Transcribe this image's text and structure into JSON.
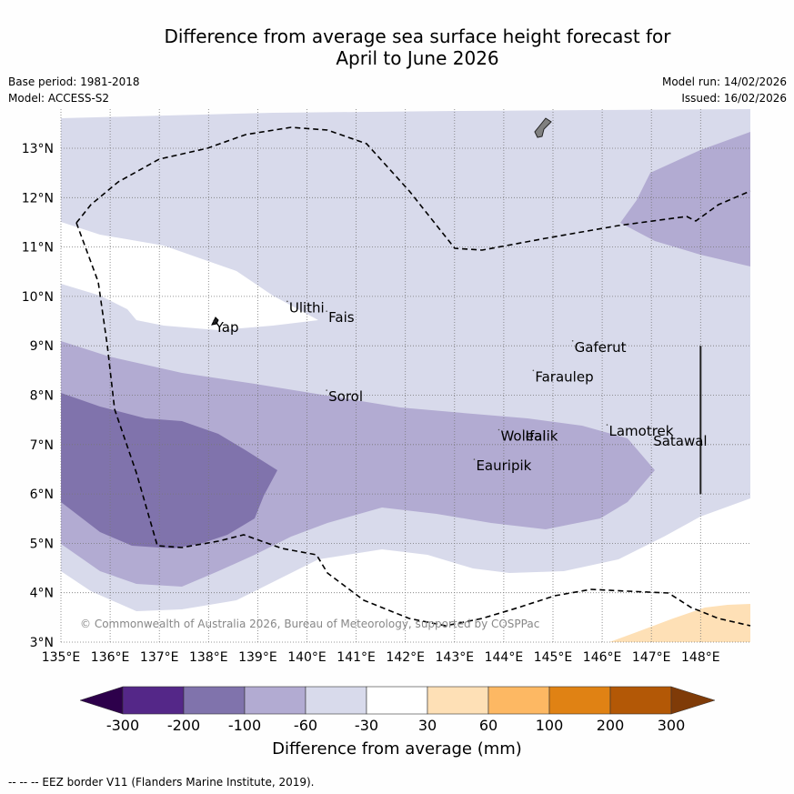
{
  "header": {
    "title_line1": "Difference from average sea surface height forecast for",
    "title_line2": "April to June 2026",
    "base_period": "Base period: 1981-2018",
    "model": "Model: ACCESS-S2",
    "model_run": "Model run: 14/02/2026",
    "issued": "Issued: 16/02/2026"
  },
  "map": {
    "lon_range": [
      135,
      149
    ],
    "lat_range": [
      3,
      13.8
    ],
    "x_ticks": [
      "135°E",
      "136°E",
      "137°E",
      "138°E",
      "139°E",
      "140°E",
      "141°E",
      "142°E",
      "143°E",
      "144°E",
      "145°E",
      "146°E",
      "147°E",
      "148°E"
    ],
    "y_ticks": [
      "3°N",
      "4°N",
      "5°N",
      "6°N",
      "7°N",
      "8°N",
      "9°N",
      "10°N",
      "11°N",
      "12°N",
      "13°N"
    ],
    "places": [
      {
        "name": "Yap",
        "lon": 138.1,
        "lat": 9.5
      },
      {
        "name": "Ulithi",
        "lon": 139.6,
        "lat": 9.9
      },
      {
        "name": "Fais",
        "lon": 140.4,
        "lat": 9.7
      },
      {
        "name": "Sorol",
        "lon": 140.4,
        "lat": 8.1
      },
      {
        "name": "Gaferut",
        "lon": 145.4,
        "lat": 9.1
      },
      {
        "name": "Faraulep",
        "lon": 144.6,
        "lat": 8.5
      },
      {
        "name": "Woleai",
        "lon": 143.9,
        "lat": 7.3
      },
      {
        "name": "Ifalik",
        "lon": 144.4,
        "lat": 7.3
      },
      {
        "name": "Lamotrek",
        "lon": 146.1,
        "lat": 7.4
      },
      {
        "name": "Satawal",
        "lon": 147.0,
        "lat": 7.2
      },
      {
        "name": "Eauripik",
        "lon": 143.4,
        "lat": 6.7
      }
    ],
    "copyright": "© Commonwealth of Australia 2026, Bureau of Meteorology, supported by COSPPac"
  },
  "colorbar": {
    "boundaries": [
      "-300",
      "-200",
      "-100",
      "-60",
      "-30",
      "30",
      "60",
      "100",
      "200",
      "300"
    ],
    "colors": [
      "#2d004b",
      "#542788",
      "#8073ac",
      "#b2abd2",
      "#d8daeb",
      "#ffffff",
      "#fee0b6",
      "#fdb863",
      "#e08214",
      "#b35806",
      "#7f3b08"
    ],
    "label": "Difference from average (mm)"
  },
  "footnote": "--  --  -- EEZ border V11 (Flanders Marine Institute, 2019)."
}
